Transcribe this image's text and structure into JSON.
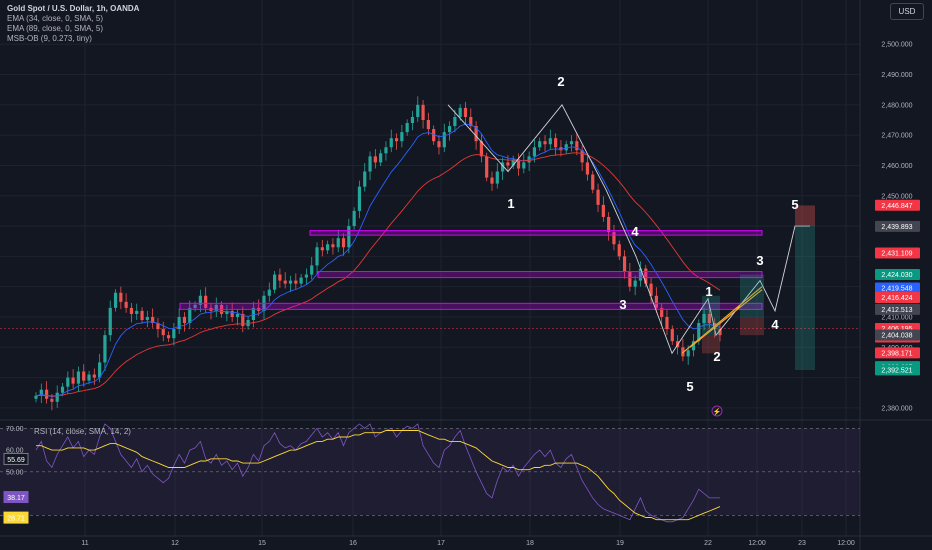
{
  "legend": {
    "title": "Gold Spot / U.S. Dollar, 1h, OANDA",
    "line1": "EMA (34, close, 0, SMA, 5)",
    "line2": "EMA (89, close, 0, SMA, 5)",
    "line3": "MSB-OB (9, 0.273, tiny)"
  },
  "currency": "USD",
  "colors": {
    "background": "#131722",
    "up": "#26a69a",
    "down": "#ef5350",
    "ema34": "#2962ff",
    "ema89": "#e53935",
    "zone": "#d500f9",
    "rsi": "#7e57c2",
    "rsi_ma": "#fdd835",
    "wave": "#ffffff",
    "channel": "#f9a825"
  },
  "chart_data": {
    "type": "candlestick",
    "ylim": [
      2376,
      2508
    ],
    "x_ticks": [
      "11",
      "12",
      "15",
      "16",
      "17",
      "18",
      "19",
      "22",
      "12:00",
      "23",
      "12:00"
    ],
    "y_ticks": [
      2380,
      2390,
      2400,
      2410,
      2420,
      2430,
      2440,
      2450,
      2460,
      2470,
      2480,
      2490,
      2500
    ],
    "y_tick_labels": [
      "2,380.000",
      "",
      "2,400.000",
      "2,410.000",
      "",
      "",
      "",
      "2,450.000",
      "2,460.000",
      "2,470.000",
      "2,480.000",
      "2,490.000",
      "2,500.000"
    ],
    "price_badges": [
      {
        "label": "2,446.847",
        "value": 2446.847,
        "color": "#f23645"
      },
      {
        "label": "2,439.893",
        "value": 2439.893,
        "color": "#434651"
      },
      {
        "label": "2,431.109",
        "value": 2431.109,
        "color": "#f23645"
      },
      {
        "label": "2,424.030",
        "value": 2424.03,
        "color": "#089981"
      },
      {
        "label": "2,419.548",
        "value": 2419.548,
        "color": "#2962ff"
      },
      {
        "label": "2,416.424",
        "value": 2416.424,
        "color": "#f23645"
      },
      {
        "label": "2,412.513",
        "value": 2412.513,
        "color": "#434651"
      },
      {
        "label": "2,406.195",
        "value": 2406.195,
        "color": "#f23645"
      },
      {
        "label": "27:52",
        "value": 2403.4,
        "color": "#f23645"
      },
      {
        "label": "2,404.038",
        "value": 2404.038,
        "color": "#434651"
      },
      {
        "label": "2,398.171",
        "value": 2398.171,
        "color": "#f23645"
      },
      {
        "label": "2,393.607",
        "value": 2393.607,
        "color": "#089981"
      },
      {
        "label": "2,392.521",
        "value": 2392.521,
        "color": "#089981"
      }
    ],
    "closes": [
      2384,
      2386,
      2383,
      2382,
      2385,
      2387,
      2390,
      2388,
      2392,
      2389,
      2391,
      2390,
      2395,
      2404,
      2413,
      2418,
      2415,
      2413,
      2411,
      2412,
      2409,
      2410,
      2408,
      2406,
      2404,
      2403,
      2406,
      2410,
      2408,
      2413,
      2414,
      2417,
      2413,
      2412,
      2414,
      2411,
      2412,
      2410,
      2411,
      2407,
      2409,
      2413,
      2412,
      2417,
      2419,
      2424,
      2422,
      2421,
      2422,
      2421,
      2423,
      2424,
      2427,
      2433,
      2432,
      2434,
      2433,
      2436,
      2433,
      2440,
      2445,
      2453,
      2458,
      2463,
      2461,
      2464,
      2466,
      2469,
      2468,
      2471,
      2474,
      2476,
      2480,
      2475,
      2472,
      2468,
      2466,
      2471,
      2473,
      2476,
      2479,
      2476,
      2473,
      2468,
      2463,
      2456,
      2454,
      2458,
      2461,
      2460,
      2462,
      2459,
      2461,
      2463,
      2466,
      2468,
      2467,
      2469,
      2466,
      2465,
      2467,
      2468,
      2465,
      2461,
      2457,
      2452,
      2447,
      2443,
      2438,
      2434,
      2430,
      2425,
      2420,
      2422,
      2426,
      2421,
      2417,
      2413,
      2410,
      2406,
      2402,
      2400,
      2397,
      2399,
      2402,
      2408,
      2411,
      2408,
      2406,
      2404
    ],
    "rsi_ylim": [
      26,
      72
    ],
    "rsi_ticks": [
      70,
      60,
      50
    ],
    "rsi_badges": [
      {
        "label": "55.69",
        "value": 55.69,
        "color": "#131722"
      },
      {
        "label": "38.17",
        "value": 38.17,
        "color": "#7e57c2"
      },
      {
        "label": "28.71",
        "value": 28.71,
        "color": "#fdd835"
      }
    ],
    "rsi": [
      60,
      64,
      55,
      52,
      58,
      62,
      66,
      61,
      64,
      57,
      60,
      58,
      66,
      72,
      70,
      64,
      58,
      55,
      52,
      56,
      50,
      53,
      49,
      47,
      45,
      47,
      53,
      58,
      54,
      60,
      61,
      64,
      56,
      54,
      58,
      53,
      55,
      51,
      54,
      48,
      52,
      58,
      55,
      62,
      64,
      68,
      63,
      61,
      62,
      60,
      63,
      64,
      67,
      70,
      66,
      68,
      65,
      68,
      62,
      68,
      70,
      72,
      70,
      72,
      66,
      68,
      69,
      70,
      66,
      69,
      71,
      70,
      72,
      62,
      58,
      54,
      52,
      60,
      62,
      66,
      69,
      62,
      56,
      50,
      45,
      40,
      38,
      46,
      52,
      50,
      53,
      48,
      52,
      55,
      58,
      60,
      57,
      60,
      54,
      52,
      56,
      58,
      52,
      46,
      42,
      38,
      35,
      33,
      32,
      31,
      30,
      29,
      28,
      33,
      38,
      32,
      30,
      29,
      28,
      27,
      27,
      28,
      29,
      33,
      37,
      42,
      40,
      38,
      38,
      38
    ],
    "rsi_ma": [
      62,
      62,
      61,
      60,
      60,
      60,
      61,
      61,
      61,
      61,
      60,
      60,
      61,
      62,
      63,
      63,
      62,
      61,
      60,
      59,
      57,
      56,
      55,
      54,
      53,
      52,
      52,
      52,
      52,
      53,
      54,
      55,
      55,
      56,
      56,
      56,
      56,
      55,
      55,
      54,
      54,
      54,
      54,
      55,
      56,
      57,
      58,
      59,
      60,
      60,
      61,
      62,
      63,
      64,
      64,
      65,
      65,
      66,
      66,
      66,
      67,
      67,
      68,
      68,
      68,
      68,
      69,
      69,
      69,
      69,
      69,
      69,
      69,
      68,
      67,
      66,
      65,
      65,
      64,
      64,
      64,
      63,
      62,
      61,
      59,
      57,
      55,
      54,
      53,
      52,
      52,
      51,
      51,
      51,
      52,
      52,
      53,
      53,
      54,
      54,
      54,
      54,
      54,
      53,
      52,
      50,
      48,
      45,
      42,
      40,
      37,
      35,
      33,
      31,
      30,
      29,
      29,
      28,
      28,
      28,
      28,
      28,
      28,
      28,
      29,
      30,
      31,
      32,
      33,
      34
    ],
    "wave_labels": [
      {
        "text": "1",
        "x": 511,
        "y": 208
      },
      {
        "text": "2",
        "x": 561,
        "y": 86
      },
      {
        "text": "3",
        "x": 623,
        "y": 309
      },
      {
        "text": "4",
        "x": 635,
        "y": 236
      },
      {
        "text": "5",
        "x": 690,
        "y": 391
      },
      {
        "text": "1",
        "x": 709,
        "y": 296
      },
      {
        "text": "2",
        "x": 717,
        "y": 361
      },
      {
        "text": "3",
        "x": 760,
        "y": 265
      },
      {
        "text": "4",
        "x": 775,
        "y": 329
      },
      {
        "text": "5",
        "x": 795,
        "y": 209
      }
    ]
  }
}
